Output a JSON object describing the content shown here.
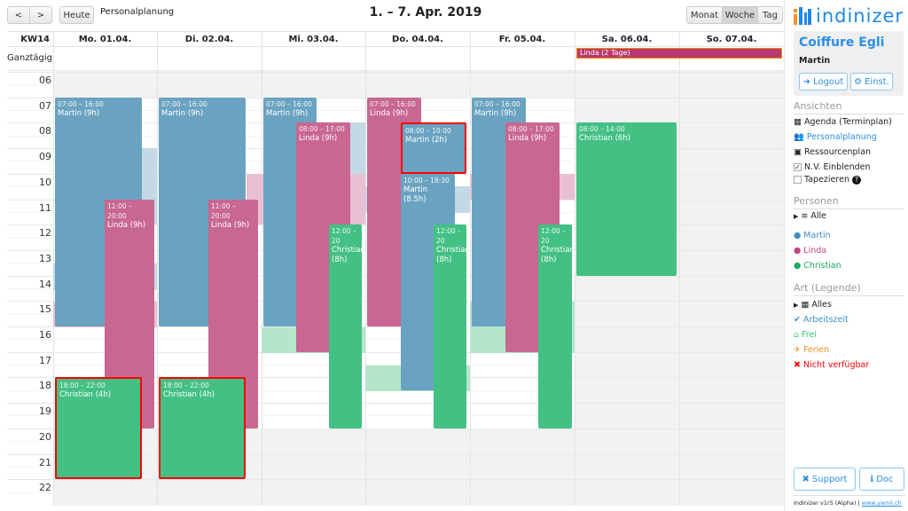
{
  "toolbar": {
    "prev": "<",
    "next": ">",
    "today": "Heute",
    "view_title": "Personalplanung",
    "range": "1. – 7. Apr. 2019",
    "views": [
      "Monat",
      "Woche",
      "Tag"
    ],
    "active_view": "Woche"
  },
  "calendar": {
    "week_label": "KW14",
    "allday_label": "Ganztägig",
    "days": [
      "Mo. 01.04.",
      "Di. 02.04.",
      "Mi. 03.04.",
      "Do. 04.04.",
      "Fr. 05.04.",
      "Sa. 06.04.",
      "So. 07.04."
    ],
    "hours": [
      "06",
      "07",
      "08",
      "09",
      "10",
      "11",
      "12",
      "13",
      "14",
      "15",
      "16",
      "17",
      "18",
      "19",
      "20",
      "21",
      "22"
    ],
    "allday_event": {
      "label": "Linda (2 Tage)",
      "color": "#b8396f",
      "border": "#f08a00"
    },
    "colors": {
      "Martin": "#6aa3c1",
      "Linda": "#c86791",
      "Christian": "#43c083"
    },
    "events": [
      {
        "day": 0,
        "start": 7,
        "end": 16,
        "time": "07:00 – 16:00",
        "label": "Martin (9h)"
      },
      {
        "day": 0,
        "start": 11,
        "end": 20,
        "time": "11:00 – 20:00",
        "label": "Linda (9h)"
      },
      {
        "day": 0,
        "start": 18,
        "end": 22,
        "time": "18:00 – 22:00",
        "label": "Christian (4h)"
      },
      {
        "day": 1,
        "start": 7,
        "end": 16,
        "time": "07:00 – 16:00",
        "label": "Martin (9h)"
      },
      {
        "day": 1,
        "start": 11,
        "end": 20,
        "time": "11:00 – 20:00",
        "label": "Linda (9h)"
      },
      {
        "day": 1,
        "start": 18,
        "end": 22,
        "time": "18:00 – 22:00",
        "label": "Christian (4h)"
      },
      {
        "day": 2,
        "start": 7,
        "end": 16,
        "time": "07:00 – 16:00",
        "label": "Martin (9h)"
      },
      {
        "day": 2,
        "start": 8,
        "end": 17,
        "time": "08:00 – 17:00",
        "label": "Linda (9h)"
      },
      {
        "day": 2,
        "start": 12,
        "end": 20,
        "time": "12:00 – 20",
        "label": "Christian (8h)"
      },
      {
        "day": 3,
        "start": 7,
        "end": 16,
        "time": "07:00 – 16:00",
        "label": "Linda (9h)"
      },
      {
        "day": 3,
        "start": 8,
        "end": 10,
        "time": "08:00 – 10:00",
        "label": "Martin (2h)"
      },
      {
        "day": 3,
        "start": 10,
        "end": 18.5,
        "time": "10:00 – 18:30",
        "label": "Martin (8.5h)"
      },
      {
        "day": 3,
        "start": 12,
        "end": 20,
        "time": "12:00 – 20",
        "label": "Christian (8h)"
      },
      {
        "day": 4,
        "start": 7,
        "end": 16,
        "time": "07:00 – 16:00",
        "label": "Martin (9h)"
      },
      {
        "day": 4,
        "start": 8,
        "end": 17,
        "time": "08:00 – 17:00",
        "label": "Linda (9h)"
      },
      {
        "day": 4,
        "start": 12,
        "end": 20,
        "time": "12:00 – 20",
        "label": "Christian (8h)"
      },
      {
        "day": 5,
        "start": 8,
        "end": 14,
        "time": "08:00 – 14:00",
        "label": "Christian (6h)"
      }
    ]
  },
  "sidebar": {
    "logo": "indinizer",
    "company": "Coiffure Egli",
    "user": "Martin",
    "logout": "Logout",
    "settings": "Einst.",
    "views_title": "Ansichten",
    "views": [
      "Agenda (Terminplan)",
      "Personalplanung",
      "Ressourcenplan"
    ],
    "show_nv": "N.V. Einblenden",
    "show_nv_checked": true,
    "tile": "Tapezieren",
    "tile_checked": false,
    "persons_title": "Personen",
    "persons_all": "Alle",
    "persons": [
      "Martin",
      "Linda",
      "Christian"
    ],
    "legend_title": "Art (Legende)",
    "legend_all": "Alles",
    "legend": [
      {
        "label": "Arbeitszeit",
        "color": "#3f8fc0"
      },
      {
        "label": "Frei",
        "color": "#2ecc71"
      },
      {
        "label": "Ferien",
        "color": "#f0901e"
      },
      {
        "label": "Nicht verfügbar",
        "color": "#f00"
      }
    ],
    "support": "Support",
    "doc": "Doc",
    "footer": "Indinizer v1r5 (Alpha) | ",
    "footer_link": "www.yamii.ch"
  }
}
